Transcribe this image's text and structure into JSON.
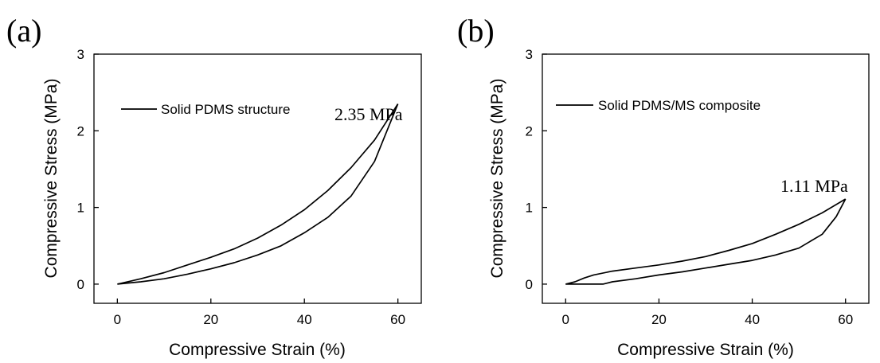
{
  "chart_data": [
    {
      "type": "line",
      "panel_label": "(a)",
      "xlabel": "Compressive Strain (%)",
      "ylabel": "Compressive Stress (MPa)",
      "xlim": [
        -5,
        65
      ],
      "ylim": [
        -0.25,
        3
      ],
      "xticks": [
        0,
        20,
        40,
        60
      ],
      "yticks": [
        0,
        1,
        2,
        3
      ],
      "legend": {
        "position": "top-left",
        "entries": [
          "Solid PDMS structure"
        ]
      },
      "annotation": {
        "text": "2.35 MPa",
        "x": 60,
        "y": 2.35
      },
      "series": [
        {
          "name": "Solid PDMS structure",
          "loading": {
            "x": [
              0,
              5,
              10,
              15,
              20,
              25,
              30,
              35,
              40,
              45,
              50,
              55,
              60
            ],
            "y": [
              0,
              0.07,
              0.15,
              0.25,
              0.35,
              0.46,
              0.6,
              0.77,
              0.97,
              1.22,
              1.52,
              1.88,
              2.35
            ]
          },
          "unloading": {
            "x": [
              60,
              57,
              55,
              50,
              45,
              40,
              35,
              30,
              25,
              20,
              15,
              10,
              5,
              0
            ],
            "y": [
              2.35,
              1.9,
              1.6,
              1.15,
              0.87,
              0.67,
              0.5,
              0.38,
              0.28,
              0.2,
              0.13,
              0.07,
              0.03,
              0
            ]
          }
        }
      ]
    },
    {
      "type": "line",
      "panel_label": "(b)",
      "xlabel": "Compressive Strain (%)",
      "ylabel": "Compressive Stress (MPa)",
      "xlim": [
        -5,
        65
      ],
      "ylim": [
        -0.25,
        3
      ],
      "xticks": [
        0,
        20,
        40,
        60
      ],
      "yticks": [
        0,
        1,
        2,
        3
      ],
      "legend": {
        "position": "top-left",
        "entries": [
          "Solid PDMS/MS composite"
        ]
      },
      "annotation": {
        "text": "1.11 MPa",
        "x": 60,
        "y": 1.11
      },
      "series": [
        {
          "name": "Solid PDMS/MS composite",
          "loading": {
            "x": [
              0,
              2,
              4,
              6,
              10,
              15,
              20,
              25,
              30,
              35,
              40,
              45,
              50,
              55,
              60
            ],
            "y": [
              0,
              0.03,
              0.08,
              0.12,
              0.17,
              0.21,
              0.25,
              0.3,
              0.36,
              0.44,
              0.53,
              0.65,
              0.78,
              0.93,
              1.11
            ]
          },
          "unloading": {
            "x": [
              60,
              58,
              55,
              50,
              45,
              40,
              35,
              30,
              25,
              20,
              15,
              10,
              8,
              5,
              0
            ],
            "y": [
              1.11,
              0.88,
              0.65,
              0.47,
              0.38,
              0.31,
              0.26,
              0.21,
              0.16,
              0.12,
              0.07,
              0.03,
              0,
              0,
              0
            ]
          }
        }
      ]
    }
  ]
}
